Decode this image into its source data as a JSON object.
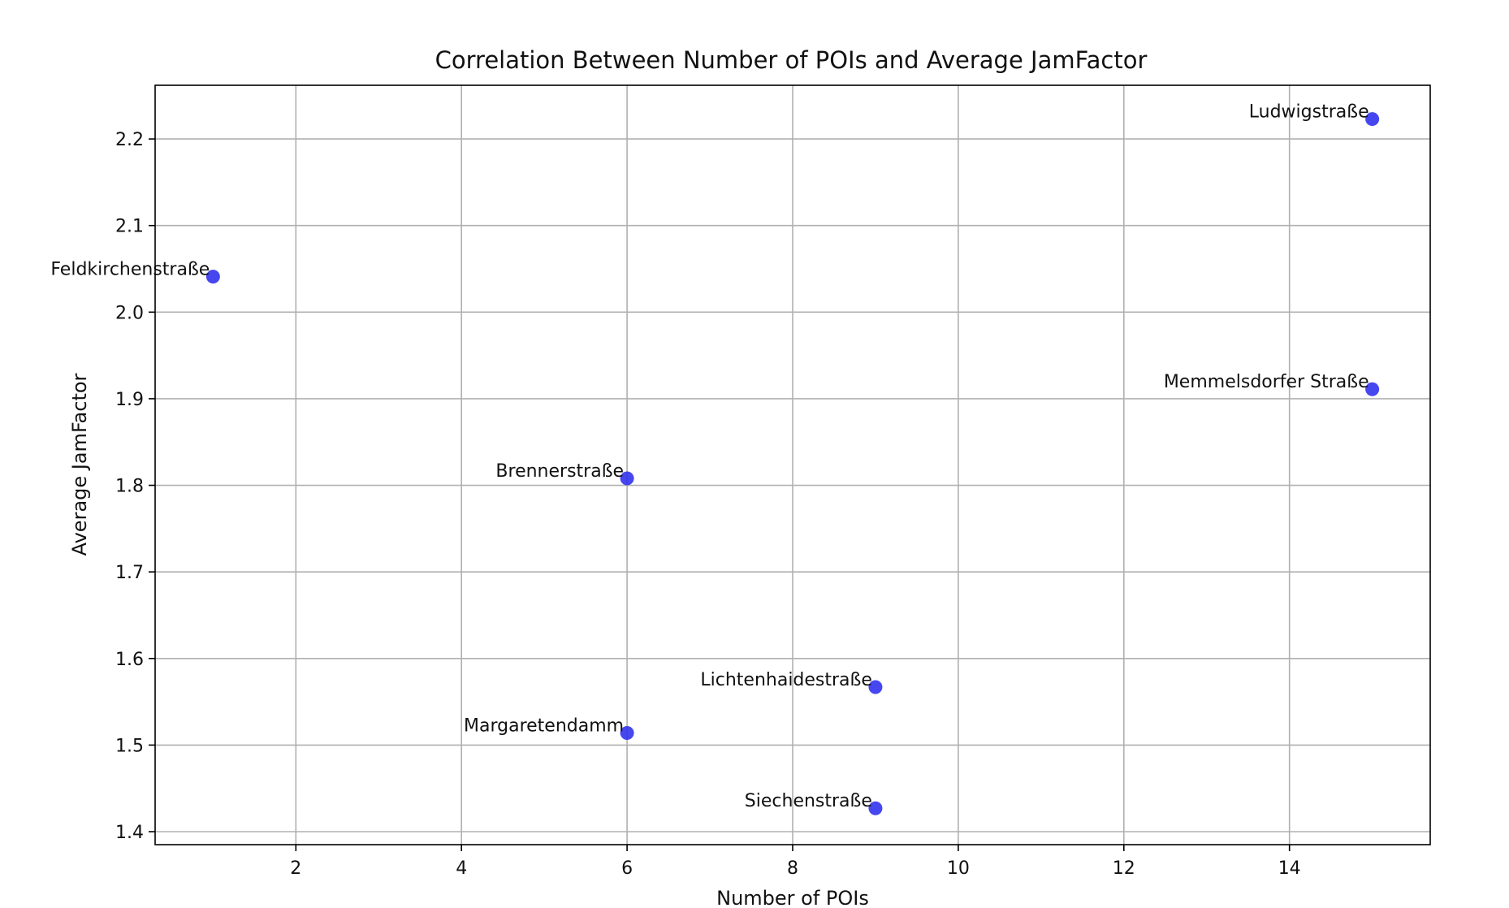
{
  "chart_data": {
    "type": "scatter",
    "title": "Correlation Between Number of POIs and Average JamFactor",
    "xlabel": "Number of POIs",
    "ylabel": "Average JamFactor",
    "xlim": [
      0.3,
      15.7
    ],
    "ylim": [
      1.385,
      2.262
    ],
    "xticks": [
      2,
      4,
      6,
      8,
      10,
      12,
      14
    ],
    "yticks": [
      1.4,
      1.5,
      1.6,
      1.7,
      1.8,
      1.9,
      2.0,
      2.1,
      2.2
    ],
    "xtick_labels": [
      "2",
      "4",
      "6",
      "8",
      "10",
      "12",
      "14"
    ],
    "ytick_labels": [
      "1.4",
      "1.5",
      "1.6",
      "1.7",
      "1.8",
      "1.9",
      "2.0",
      "2.1",
      "2.2"
    ],
    "grid": true,
    "marker_color": "#3333ee",
    "points": [
      {
        "label": "Ludwigstraße",
        "x": 15,
        "y": 2.223
      },
      {
        "label": "Feldkirchenstraße",
        "x": 1,
        "y": 2.041
      },
      {
        "label": "Memmelsdorfer Straße",
        "x": 15,
        "y": 1.911
      },
      {
        "label": "Brennerstraße",
        "x": 6,
        "y": 1.808
      },
      {
        "label": "Lichtenhaidestraße",
        "x": 9,
        "y": 1.567
      },
      {
        "label": "Margaretendamm",
        "x": 6,
        "y": 1.514
      },
      {
        "label": "Siechenstraße",
        "x": 9,
        "y": 1.427
      }
    ]
  }
}
